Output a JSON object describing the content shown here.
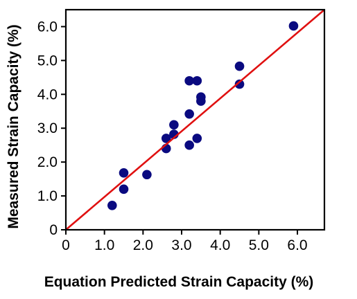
{
  "chart_data": {
    "type": "scatter",
    "title": "",
    "xlabel": "Equation Predicted  Strain Capacity (%)",
    "ylabel": "Measured Strain Capacity (%)",
    "xlim": [
      0,
      6.7
    ],
    "ylim": [
      0,
      6.5
    ],
    "x_ticks": [
      {
        "value": 0,
        "label": "0"
      },
      {
        "value": 1,
        "label": "1.0"
      },
      {
        "value": 2,
        "label": "2.0"
      },
      {
        "value": 3,
        "label": "3.0"
      },
      {
        "value": 4,
        "label": "4.0"
      },
      {
        "value": 5,
        "label": "5.0"
      },
      {
        "value": 6,
        "label": "6.0"
      }
    ],
    "y_ticks": [
      {
        "value": 0,
        "label": "0"
      },
      {
        "value": 1,
        "label": "1.0"
      },
      {
        "value": 2,
        "label": "2.0"
      },
      {
        "value": 3,
        "label": "3.0"
      },
      {
        "value": 4,
        "label": "4.0"
      },
      {
        "value": 5,
        "label": "5.0"
      },
      {
        "value": 6,
        "label": "6.0"
      }
    ],
    "grid": false,
    "legend": "none",
    "series": [
      {
        "type": "scatter",
        "color": "#0a0a80",
        "points": [
          {
            "x": 1.2,
            "y": 0.72
          },
          {
            "x": 1.5,
            "y": 1.2
          },
          {
            "x": 1.5,
            "y": 1.68
          },
          {
            "x": 2.1,
            "y": 1.63
          },
          {
            "x": 2.6,
            "y": 2.4
          },
          {
            "x": 2.6,
            "y": 2.7
          },
          {
            "x": 2.8,
            "y": 2.82
          },
          {
            "x": 2.8,
            "y": 3.1
          },
          {
            "x": 3.2,
            "y": 2.5
          },
          {
            "x": 3.2,
            "y": 3.42
          },
          {
            "x": 3.2,
            "y": 4.4
          },
          {
            "x": 3.4,
            "y": 2.7
          },
          {
            "x": 3.4,
            "y": 4.4
          },
          {
            "x": 3.5,
            "y": 3.8
          },
          {
            "x": 3.5,
            "y": 3.92
          },
          {
            "x": 4.5,
            "y": 4.3
          },
          {
            "x": 4.5,
            "y": 4.83
          },
          {
            "x": 5.9,
            "y": 6.02
          }
        ]
      },
      {
        "type": "line",
        "color": "#e01010",
        "points": [
          {
            "x": 0,
            "y": 0
          },
          {
            "x": 6.7,
            "y": 6.5
          }
        ]
      }
    ]
  }
}
